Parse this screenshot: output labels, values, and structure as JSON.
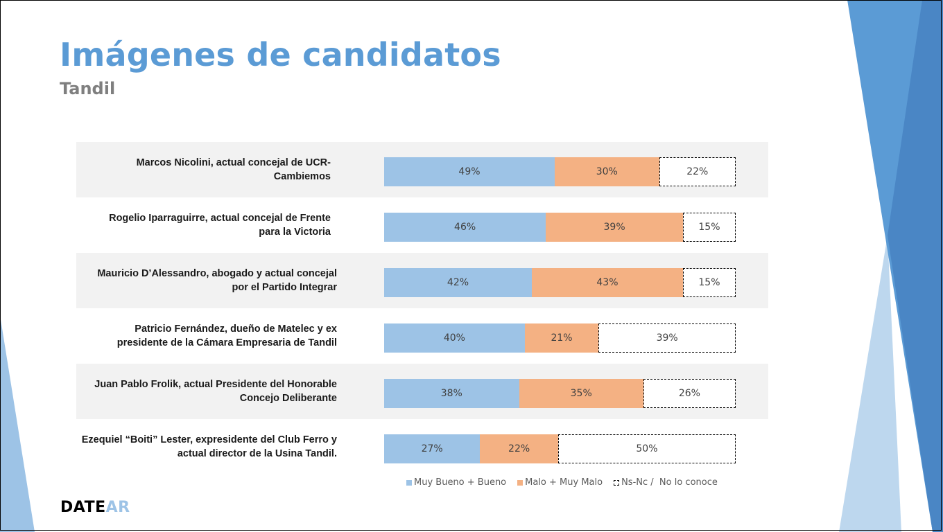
{
  "slide": {
    "title": "Imágenes de candidatos",
    "subtitle": "Tandil",
    "logo_part1": "DATE",
    "logo_part2": "AR"
  },
  "colors": {
    "title": "#5b9bd5",
    "good": "#9dc3e6",
    "bad": "#f4b183",
    "ns": "#ffffff",
    "row_band": "#f2f2f2",
    "deco_dark": "#4a86c5",
    "deco_mid": "#5b9bd5",
    "deco_light": "#bdd7ee"
  },
  "chart_data": {
    "type": "bar",
    "orientation": "horizontal",
    "stacked": true,
    "categories": [
      "Marcos Nicolini, actual concejal de UCR-Cambiemos",
      "Rogelio Iparraguirre, actual concejal de Frente para la Victoria",
      "Mauricio D’Alessandro, abogado y actual concejal por el Partido Integrar",
      "Patricio Fernández, dueño de Matelec y ex presidente de la Cámara Empresaria de Tandil",
      "Juan Pablo Frolik, actual Presidente del Honorable Concejo Deliberante",
      "Ezequiel “Boiti” Lester, expresidente del Club Ferro y actual director de la Usina Tandil."
    ],
    "category_lines": [
      [
        "Marcos Nicolini, actual concejal de UCR-",
        "Cambiemos"
      ],
      [
        "Rogelio Iparraguirre, actual concejal de Frente",
        "para la Victoria"
      ],
      [
        "Mauricio D’Alessandro, abogado y actual concejal",
        "por el Partido Integrar"
      ],
      [
        "Patricio Fernández, dueño de Matelec y ex",
        "presidente de la Cámara Empresaria de Tandil"
      ],
      [
        "Juan Pablo Frolik, actual Presidente del Honorable",
        "Concejo Deliberante"
      ],
      [
        "Ezequiel “Boiti” Lester, expresidente del Club Ferro y",
        "actual director de la Usina Tandil."
      ]
    ],
    "series": [
      {
        "name": "Muy Bueno + Bueno",
        "values": [
          49,
          46,
          42,
          40,
          38,
          27
        ],
        "labels": [
          "49%",
          "46%",
          "42%",
          "40%",
          "38%",
          "27%"
        ]
      },
      {
        "name": "Malo + Muy Malo",
        "values": [
          30,
          39,
          43,
          21,
          35,
          22
        ],
        "labels": [
          "30%",
          "39%",
          "43%",
          "21%",
          "35%",
          "22%"
        ]
      },
      {
        "name": "Ns-Nc /  No lo conoce",
        "values": [
          22,
          15,
          15,
          39,
          26,
          50
        ],
        "labels": [
          "22%",
          "15%",
          "15%",
          "39%",
          "26%",
          "50%"
        ]
      }
    ],
    "legend_position": "bottom",
    "grid": false
  }
}
